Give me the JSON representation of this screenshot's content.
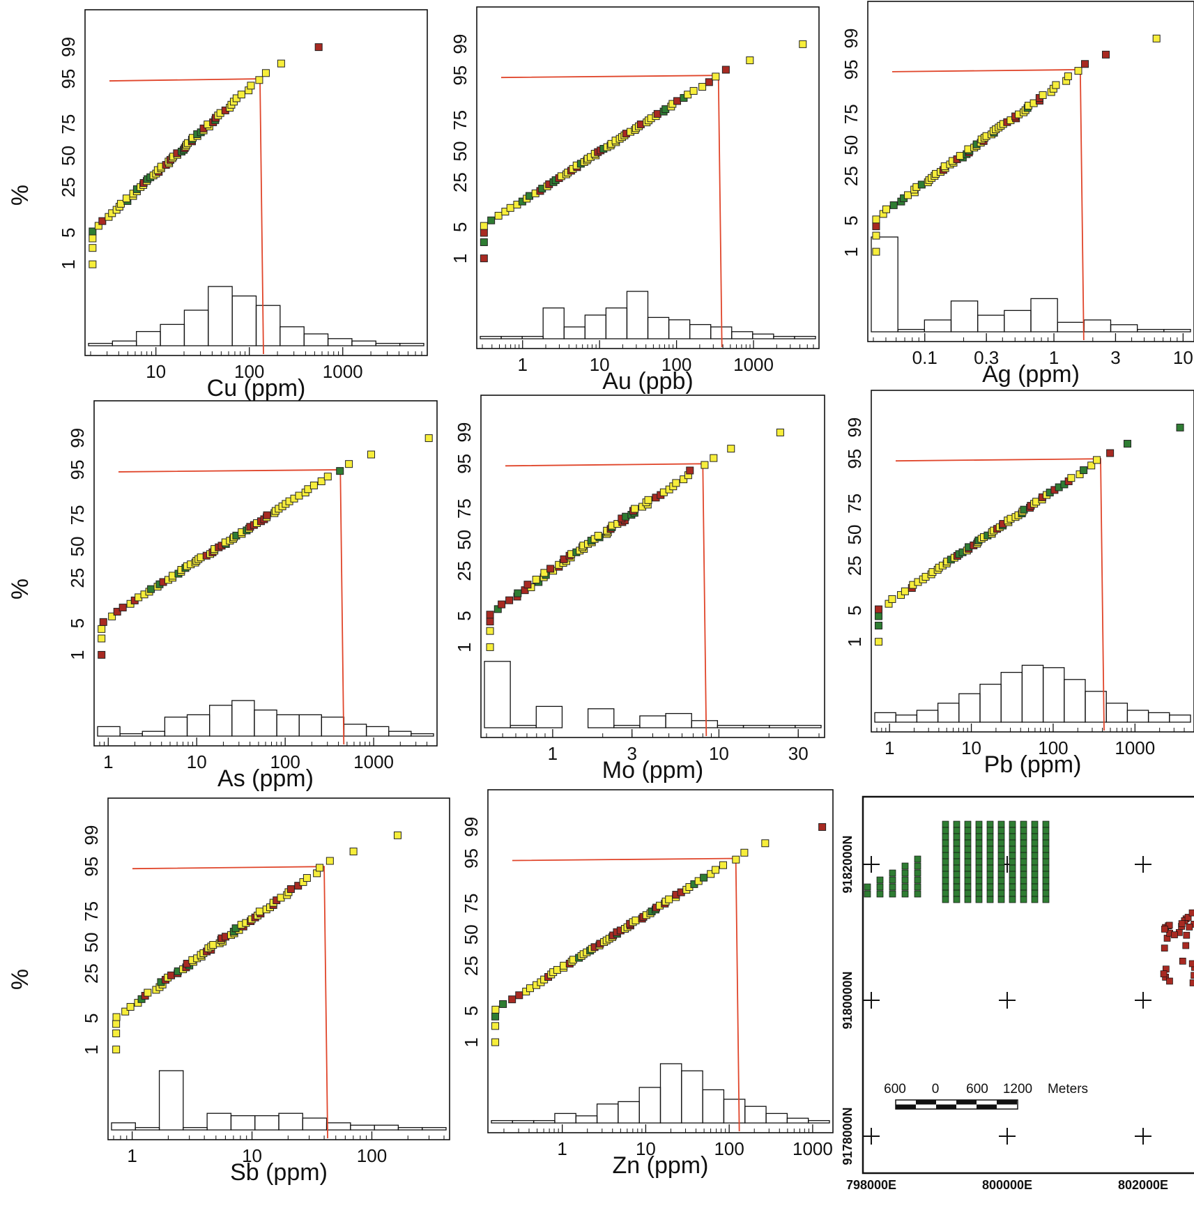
{
  "colors": {
    "yellow": "#f7ee3b",
    "red": "#a82a22",
    "green": "#2f7d33",
    "cutoff": "#e0452a",
    "frame": "#111111"
  },
  "y_axis_title": "%",
  "prob_ticks": [
    "1",
    "5",
    "25",
    "50",
    "75",
    "95",
    "99"
  ],
  "map": {
    "northing_labels": [
      "9182000N",
      "9180000N",
      "9178000N"
    ],
    "easting_labels": [
      "798000E",
      "800000E",
      "802000E"
    ],
    "scale_labels": [
      "600",
      "0",
      "600",
      "1200",
      "Meters"
    ]
  },
  "chart_data": [
    {
      "type": "scatter",
      "element": "Cu",
      "xlabel": "Cu (ppm)",
      "x_scale": "log",
      "xlim": [
        2,
        7000
      ],
      "xtick_labels": [
        "10",
        "100",
        "1000"
      ],
      "xticks": [
        10,
        100,
        1000
      ],
      "threshold": 130,
      "threshold_percent": 95,
      "hist_heights": [
        1,
        2,
        6,
        9,
        15,
        25,
        21,
        17,
        8,
        5,
        3,
        2,
        1,
        1
      ]
    },
    {
      "type": "scatter",
      "element": "Au",
      "xlabel": "Au (ppb)",
      "x_scale": "log",
      "xlim": [
        0.3,
        6000
      ],
      "xtick_labels": [
        "1",
        "10",
        "100",
        "1000"
      ],
      "xticks": [
        1,
        10,
        100,
        1000
      ],
      "threshold": 350,
      "threshold_percent": 95,
      "hist_heights": [
        1,
        1,
        1,
        13,
        5,
        10,
        13,
        20,
        9,
        8,
        6,
        5,
        3,
        2,
        1,
        1
      ]
    },
    {
      "type": "scatter",
      "element": "Ag",
      "xlabel": "Ag (ppm)",
      "x_scale": "log",
      "xlim": [
        0.04,
        11
      ],
      "xtick_labels": [
        "0.1",
        "0.3",
        "1",
        "3",
        "10"
      ],
      "xticks": [
        0.1,
        0.3,
        1,
        3,
        10
      ],
      "threshold": 1.6,
      "threshold_percent": 95,
      "hist_heights": [
        40,
        1,
        5,
        13,
        7,
        9,
        14,
        4,
        5,
        3,
        1,
        1
      ]
    },
    {
      "type": "scatter",
      "element": "As",
      "xlabel": "As (ppm)",
      "x_scale": "log",
      "xlim": [
        0.8,
        4500
      ],
      "xtick_labels": [
        "1",
        "10",
        "100",
        "1000"
      ],
      "xticks": [
        1,
        10,
        100,
        1000
      ],
      "threshold": 420,
      "threshold_percent": 95,
      "hist_heights": [
        4,
        1,
        2,
        8,
        9,
        13,
        15,
        11,
        9,
        9,
        8,
        5,
        4,
        2,
        1
      ]
    },
    {
      "type": "scatter",
      "element": "Mo",
      "xlabel": "Mo (ppm)",
      "x_scale": "log",
      "xlim": [
        0.4,
        40
      ],
      "xtick_labels": [
        "1",
        "3",
        "10",
        "30"
      ],
      "xticks": [
        1,
        3,
        10,
        30
      ],
      "threshold": 8,
      "threshold_percent": 95,
      "hist_heights": [
        28,
        1,
        9,
        0,
        8,
        1,
        5,
        6,
        3,
        1,
        1,
        1,
        1
      ]
    },
    {
      "type": "scatter",
      "element": "Pb",
      "xlabel": "Pb (ppm)",
      "x_scale": "log",
      "xlim": [
        0.7,
        4500
      ],
      "xtick_labels": [
        "1",
        "10",
        "100",
        "1000"
      ],
      "xticks": [
        1,
        10,
        100,
        1000
      ],
      "threshold": 380,
      "threshold_percent": 95,
      "hist_heights": [
        4,
        3,
        5,
        8,
        12,
        16,
        21,
        24,
        23,
        18,
        13,
        8,
        5,
        4,
        3
      ]
    },
    {
      "type": "scatter",
      "element": "Sb",
      "xlabel": "Sb (ppm)",
      "x_scale": "log",
      "xlim": [
        0.7,
        400
      ],
      "xtick_labels": [
        "1",
        "10",
        "100"
      ],
      "xticks": [
        1,
        10,
        100
      ],
      "threshold": 40,
      "threshold_percent": 95,
      "hist_heights": [
        3,
        1,
        25,
        1,
        7,
        6,
        6,
        7,
        5,
        3,
        2,
        2,
        1,
        1
      ]
    },
    {
      "type": "scatter",
      "element": "Zn",
      "xlabel": "Zn (ppm)",
      "x_scale": "log",
      "xlim": [
        0.15,
        1500
      ],
      "xtick_labels": [
        "1",
        "10",
        "100",
        "1000"
      ],
      "xticks": [
        1,
        10,
        100,
        1000
      ],
      "threshold": 120,
      "threshold_percent": 95,
      "hist_heights": [
        1,
        1,
        1,
        4,
        3,
        8,
        9,
        15,
        25,
        22,
        14,
        10,
        7,
        4,
        2,
        1
      ]
    }
  ]
}
